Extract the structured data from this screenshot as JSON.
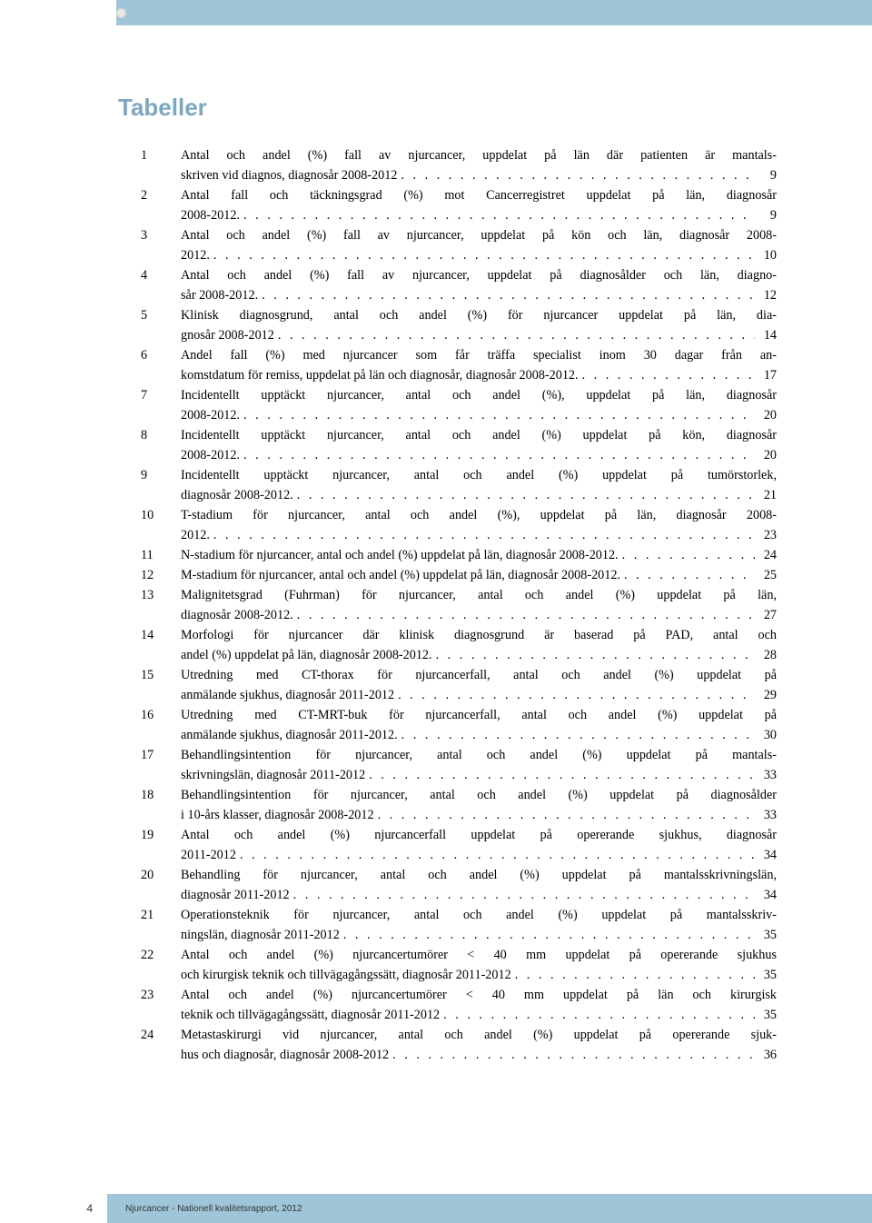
{
  "header": {
    "tab_label": "Tabeller"
  },
  "title": "Tabeller",
  "footer": {
    "page_number": "4",
    "text": "Njurcancer - Nationell kvalitetsrapport, 2012"
  },
  "entries": [
    {
      "n": "1",
      "pre": "Antal och andel (%) fall av njurcancer, uppdelat på län där patienten är mantals-",
      "last": "skriven vid diagnos, diagnosår 2008-2012",
      "page": "9"
    },
    {
      "n": "2",
      "pre": "Antal fall och täckningsgrad (%) mot Cancerregistret uppdelat på län, diagnosår",
      "last": "2008-2012.",
      "page": "9"
    },
    {
      "n": "3",
      "pre": "Antal och andel (%) fall av njurcancer, uppdelat på kön och län, diagnosår 2008-",
      "last": "2012.",
      "page": "10"
    },
    {
      "n": "4",
      "pre": "Antal och andel (%) fall av njurcancer, uppdelat på diagnosålder och län, diagno-",
      "last": "sår 2008-2012.",
      "page": "12"
    },
    {
      "n": "5",
      "pre": "Klinisk diagnosgrund, antal och andel (%) för njurcancer uppdelat på län, dia-",
      "last": "gnosår 2008-2012",
      "page": "14"
    },
    {
      "n": "6",
      "pre": "Andel fall (%) med njurcancer som får träffa specialist inom 30 dagar från an-",
      "last": "komstdatum för remiss, uppdelat på län och diagnosår, diagnosår 2008-2012.",
      "page": "17"
    },
    {
      "n": "7",
      "pre": "Incidentellt upptäckt njurcancer, antal och andel (%), uppdelat på län, diagnosår",
      "last": "2008-2012.",
      "page": "20"
    },
    {
      "n": "8",
      "pre": "Incidentellt upptäckt njurcancer, antal och andel (%) uppdelat på kön, diagnosår",
      "last": "2008-2012.",
      "page": "20"
    },
    {
      "n": "9",
      "pre": "Incidentellt upptäckt njurcancer, antal och andel (%) uppdelat på tumörstorlek,",
      "last": "diagnosår 2008-2012.",
      "page": "21"
    },
    {
      "n": "10",
      "pre": "T-stadium för njurcancer, antal och andel (%), uppdelat på län, diagnosår 2008-",
      "last": "2012.",
      "page": "23"
    },
    {
      "n": "11",
      "pre": "",
      "last": "N-stadium för njurcancer, antal och andel (%) uppdelat på län, diagnosår 2008-2012.",
      "page": "24"
    },
    {
      "n": "12",
      "pre": "",
      "last": "M-stadium för njurcancer, antal och andel (%) uppdelat på län, diagnosår 2008-2012.",
      "page": "25"
    },
    {
      "n": "13",
      "pre": "Malignitetsgrad (Fuhrman) för njurcancer, antal och andel (%) uppdelat på län,",
      "last": "diagnosår 2008-2012.",
      "page": "27"
    },
    {
      "n": "14",
      "pre": "Morfologi för njurcancer där klinisk diagnosgrund är baserad på PAD, antal och",
      "last": "andel (%) uppdelat på län, diagnosår 2008-2012.",
      "page": "28"
    },
    {
      "n": "15",
      "pre": "Utredning med CT-thorax för njurcancerfall, antal och andel (%) uppdelat på",
      "last": "anmälande sjukhus, diagnosår 2011-2012",
      "page": "29"
    },
    {
      "n": "16",
      "pre": "Utredning med CT-MRT-buk för njurcancerfall, antal och andel (%) uppdelat på",
      "last": "anmälande sjukhus, diagnosår 2011-2012.",
      "page": "30"
    },
    {
      "n": "17",
      "pre": "Behandlingsintention för njurcancer, antal och andel (%) uppdelat på mantals-",
      "last": "skrivningslän, diagnosår 2011-2012",
      "page": "33"
    },
    {
      "n": "18",
      "pre": "Behandlingsintention för njurcancer, antal och andel (%) uppdelat på diagnosålder",
      "last": "i 10-års klasser, diagnosår 2008-2012",
      "page": "33"
    },
    {
      "n": "19",
      "pre": "Antal och andel (%) njurcancerfall uppdelat på opererande sjukhus, diagnosår",
      "last": "2011-2012",
      "page": "34"
    },
    {
      "n": "20",
      "pre": "Behandling för njurcancer, antal och andel (%) uppdelat på mantalsskrivningslän,",
      "last": "diagnosår 2011-2012",
      "page": "34"
    },
    {
      "n": "21",
      "pre": "Operationsteknik för njurcancer, antal och andel (%) uppdelat på mantalsskriv-",
      "last": "ningslän, diagnosår 2011-2012",
      "page": "35"
    },
    {
      "n": "22",
      "pre": "Antal och andel (%) njurcancertumörer < 40 mm uppdelat på opererande sjukhus",
      "last": "och kirurgisk teknik och tillvägagångssätt, diagnosår 2011-2012",
      "page": "35"
    },
    {
      "n": "23",
      "pre": "Antal och andel (%) njurcancertumörer < 40 mm uppdelat på län och kirurgisk",
      "last": "teknik och tillvägagångssätt, diagnosår 2011-2012",
      "page": "35"
    },
    {
      "n": "24",
      "pre": "Metastaskirurgi vid njurcancer, antal och andel (%) uppdelat på opererande sjuk-",
      "last": "hus och diagnosår, diagnosår 2008-2012",
      "page": "36"
    }
  ]
}
